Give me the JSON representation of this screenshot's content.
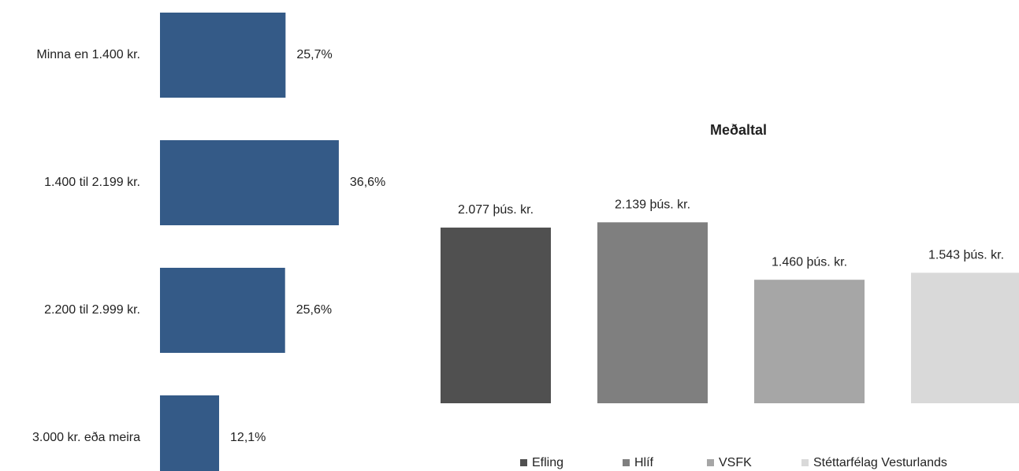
{
  "chart_data": [
    {
      "type": "hbar",
      "categories": [
        "Minna en 1.400 kr.",
        "1.400 til 2.199 kr.",
        "2.200 til 2.999 kr.",
        "3.000 kr. eða meira"
      ],
      "values": [
        25.7,
        36.6,
        25.6,
        12.1
      ],
      "value_labels": [
        "25,7%",
        "36,6%",
        "25,6%",
        "12,1%"
      ],
      "color": "#345a87",
      "xlim": [
        0,
        40
      ]
    },
    {
      "type": "bar",
      "title": "Meðaltal",
      "series": [
        {
          "name": "Efling",
          "color": "#505050",
          "values": [
            2077
          ],
          "value_labels": [
            "2.077 þús. kr."
          ]
        },
        {
          "name": "Hlíf",
          "color": "#7f7f7f",
          "values": [
            2139
          ],
          "value_labels": [
            "2.139 þús. kr."
          ]
        },
        {
          "name": "VSFK",
          "color": "#a6a6a6",
          "values": [
            1460
          ],
          "value_labels": [
            "1.460 þús. kr."
          ]
        },
        {
          "name": "Stéttarfélag Vesturlands",
          "color": "#d9d9d9",
          "values": [
            1543
          ],
          "value_labels": [
            "1.543 þús. kr."
          ]
        }
      ],
      "ylim": [
        0,
        2500
      ],
      "legend": "bottom"
    }
  ]
}
